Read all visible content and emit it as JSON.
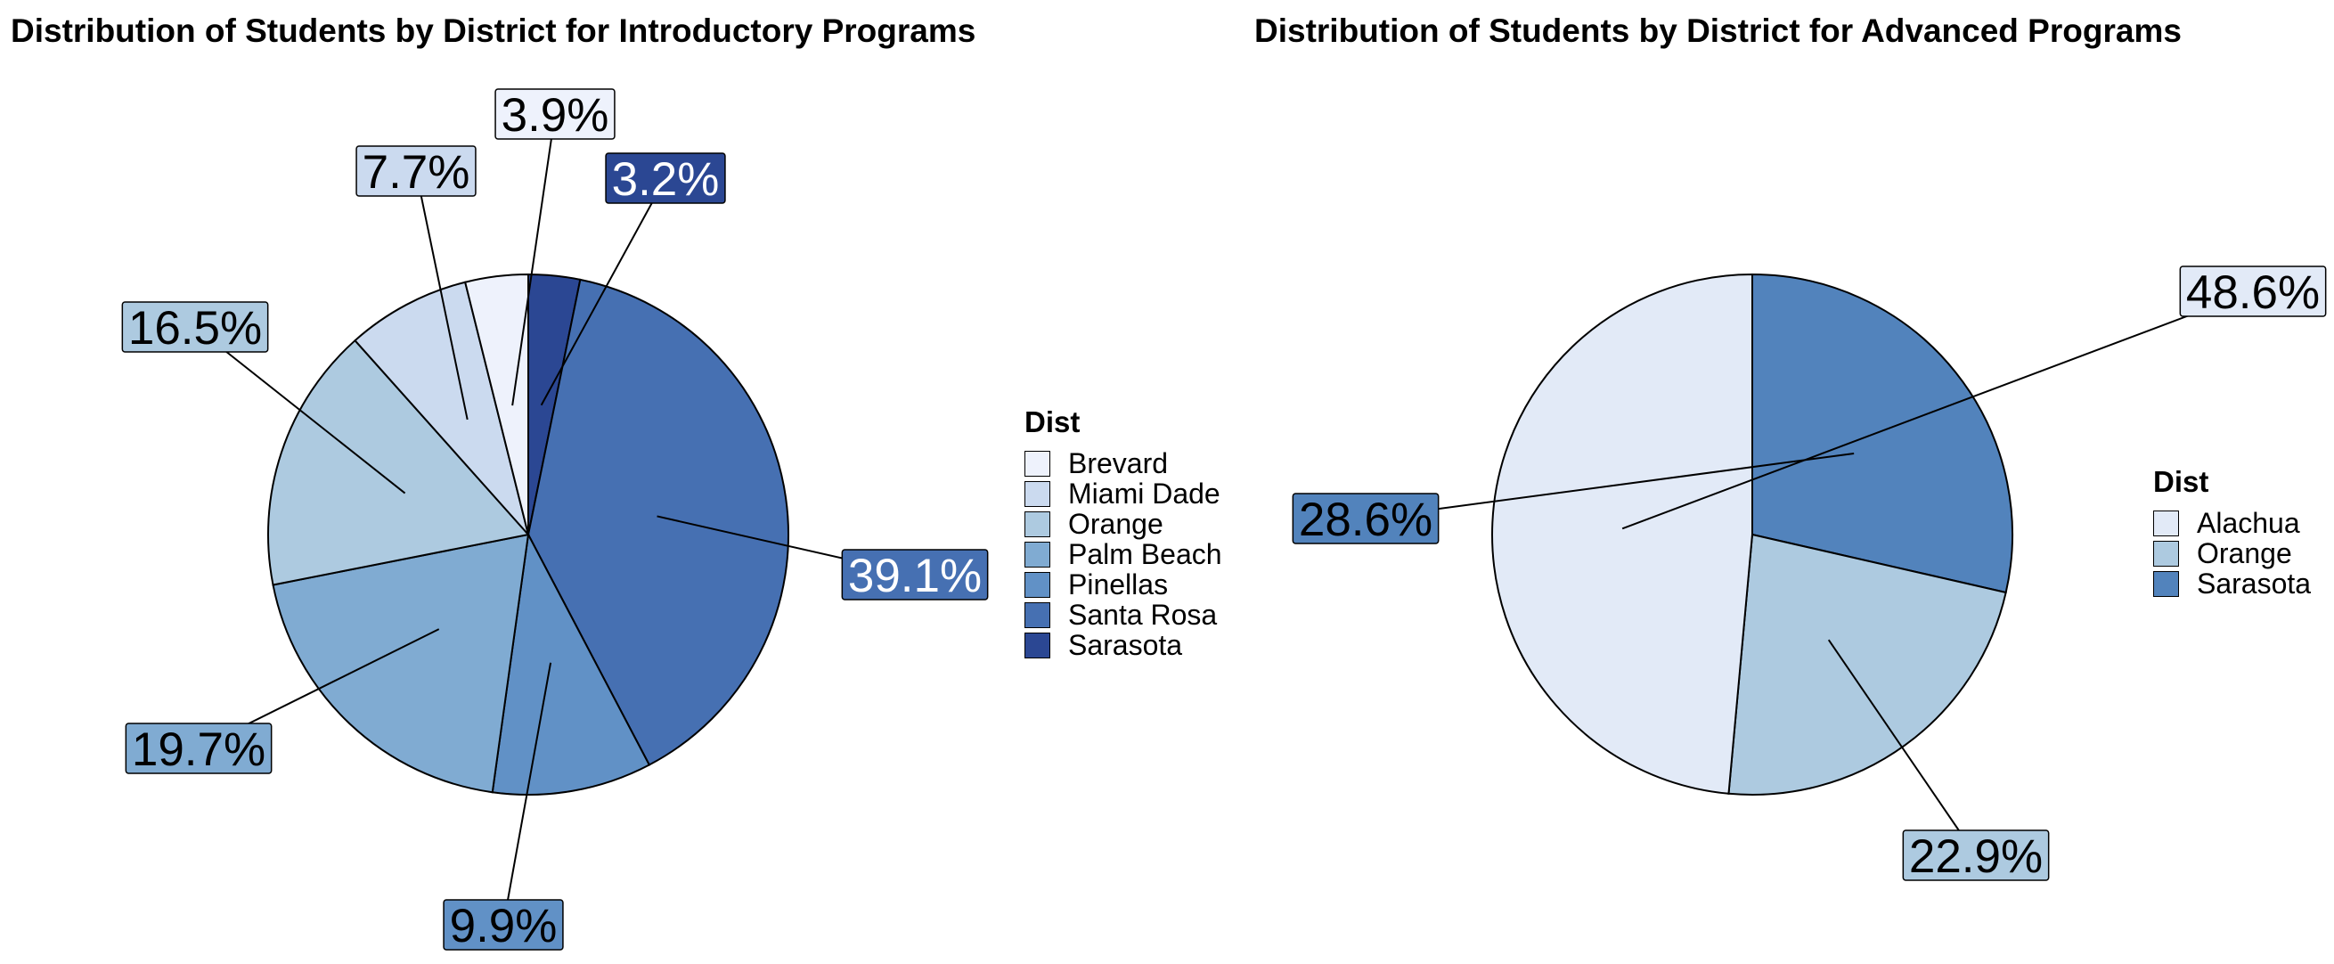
{
  "chart_data": [
    {
      "type": "pie",
      "title": "Distribution of Students by District for Introductory Programs",
      "legend_title": "Dist",
      "legend_position": "right",
      "slices": [
        {
          "label": "Brevard",
          "value": 3.9,
          "data_label": "3.9%",
          "color": "#eef2fc"
        },
        {
          "label": "Miami Dade",
          "value": 7.7,
          "data_label": "7.7%",
          "color": "#cbdaef"
        },
        {
          "label": "Orange",
          "value": 16.5,
          "data_label": "16.5%",
          "color": "#adcae0"
        },
        {
          "label": "Palm Beach",
          "value": 19.7,
          "data_label": "19.7%",
          "color": "#80abd2"
        },
        {
          "label": "Pinellas",
          "value": 9.9,
          "data_label": "9.9%",
          "color": "#6191c6"
        },
        {
          "label": "Santa Rosa",
          "value": 39.1,
          "data_label": "39.1%",
          "color": "#4670b2"
        },
        {
          "label": "Sarasota",
          "value": 3.2,
          "data_label": "3.2%",
          "color": "#2b4793"
        }
      ]
    },
    {
      "type": "pie",
      "title": "Distribution of Students by District for Advanced Programs",
      "legend_title": "Dist",
      "legend_position": "right",
      "slices": [
        {
          "label": "Alachua",
          "value": 48.6,
          "data_label": "48.6%",
          "color": "#e2eaf7"
        },
        {
          "label": "Orange",
          "value": 22.9,
          "data_label": "22.9%",
          "color": "#adcae0"
        },
        {
          "label": "Sarasota",
          "value": 28.6,
          "data_label": "28.6%",
          "color": "#5283bc"
        }
      ]
    }
  ]
}
